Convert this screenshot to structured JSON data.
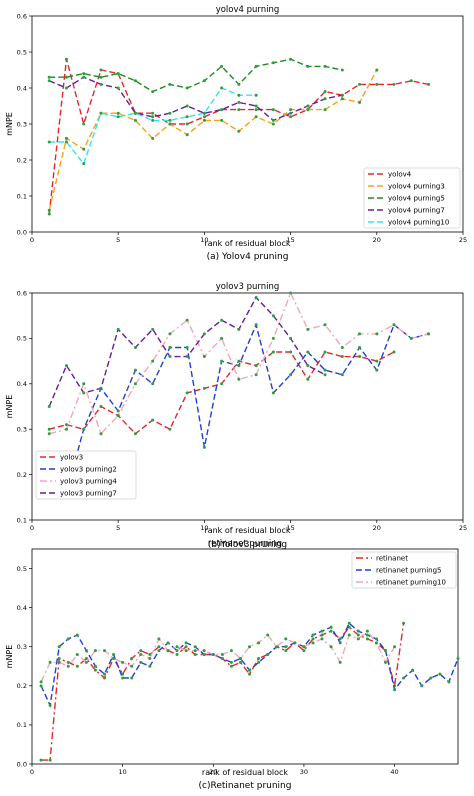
{
  "chart_data": [
    {
      "type": "line",
      "title": "yolov4 purning",
      "xlabel": "rank of residual block",
      "ylabel": "mNPE",
      "caption": "(a)  Yolov4 pruning",
      "xlim": [
        0,
        25
      ],
      "ylim": [
        0,
        0.6
      ],
      "xticks": [
        0,
        5,
        10,
        15,
        20,
        25
      ],
      "yticks": [
        0.0,
        0.1,
        0.2,
        0.3,
        0.4,
        0.5,
        0.6
      ],
      "legend_position": "lower-right",
      "series": [
        {
          "name": "yolov4",
          "color": "#e8262a",
          "dash": "dashed",
          "x": [
            1,
            2,
            3,
            4,
            5,
            6,
            7,
            8,
            9,
            10,
            11,
            12,
            13,
            14,
            15,
            16,
            17,
            18,
            19,
            20,
            21,
            22,
            23
          ],
          "y": [
            0.05,
            0.48,
            0.3,
            0.45,
            0.44,
            0.33,
            0.33,
            0.3,
            0.3,
            0.32,
            0.34,
            0.34,
            0.34,
            0.34,
            0.32,
            0.34,
            0.39,
            0.38,
            0.41,
            0.41,
            0.41,
            0.42,
            0.41
          ]
        },
        {
          "name": "yolov4 purning3",
          "color": "#f5a316",
          "dash": "dashed",
          "x": [
            1,
            2,
            3,
            4,
            5,
            6,
            7,
            8,
            9,
            10,
            11,
            12,
            13,
            14,
            15,
            16,
            17,
            18,
            19,
            20
          ],
          "y": [
            0.06,
            0.26,
            0.23,
            0.33,
            0.33,
            0.31,
            0.26,
            0.3,
            0.27,
            0.31,
            0.31,
            0.28,
            0.32,
            0.3,
            0.34,
            0.34,
            0.34,
            0.37,
            0.36,
            0.45
          ]
        },
        {
          "name": "yolov4 purning5",
          "color": "#1f8a1f",
          "dash": "dashed",
          "x": [
            1,
            2,
            3,
            4,
            5,
            6,
            7,
            8,
            9,
            10,
            11,
            12,
            13,
            14,
            15,
            16,
            17,
            18
          ],
          "y": [
            0.43,
            0.43,
            0.44,
            0.43,
            0.44,
            0.42,
            0.39,
            0.41,
            0.4,
            0.42,
            0.46,
            0.41,
            0.46,
            0.47,
            0.48,
            0.46,
            0.46,
            0.45
          ]
        },
        {
          "name": "yolov4 purning7",
          "color": "#6a1b9a",
          "dash": "dashed",
          "x": [
            1,
            2,
            3,
            4,
            5,
            6,
            7,
            8,
            9,
            10,
            11,
            12,
            13,
            14,
            15,
            16,
            17,
            18
          ],
          "y": [
            0.42,
            0.4,
            0.43,
            0.41,
            0.4,
            0.33,
            0.32,
            0.33,
            0.35,
            0.33,
            0.34,
            0.36,
            0.35,
            0.31,
            0.33,
            0.35,
            0.37,
            0.38
          ]
        },
        {
          "name": "yolov4 purning10",
          "color": "#2ee6f0",
          "dash": "dashed",
          "x": [
            1,
            2,
            3,
            4,
            5,
            6,
            7,
            8,
            9,
            10,
            11,
            12,
            13
          ],
          "y": [
            0.25,
            0.25,
            0.19,
            0.33,
            0.32,
            0.33,
            0.31,
            0.31,
            0.32,
            0.33,
            0.4,
            0.38,
            0.38
          ]
        }
      ]
    },
    {
      "type": "line",
      "title": "yolov3 purning",
      "xlabel": "rank of residual block",
      "ylabel": "mNPE",
      "caption": "(b)Yolov3 pruning",
      "xlim": [
        0,
        25
      ],
      "ylim": [
        0.1,
        0.6
      ],
      "xticks": [
        0,
        5,
        10,
        15,
        20,
        25
      ],
      "yticks": [
        0.1,
        0.2,
        0.3,
        0.4,
        0.5,
        0.6
      ],
      "legend_position": "lower-left",
      "series": [
        {
          "name": "yolov3",
          "color": "#e8262a",
          "dash": "dashed",
          "x": [
            1,
            2,
            3,
            4,
            5,
            6,
            7,
            8,
            9,
            10,
            11,
            12,
            13,
            14,
            15,
            16,
            17,
            18,
            19,
            20,
            21
          ],
          "y": [
            0.3,
            0.31,
            0.3,
            0.35,
            0.33,
            0.29,
            0.32,
            0.3,
            0.38,
            0.39,
            0.4,
            0.45,
            0.44,
            0.47,
            0.47,
            0.41,
            0.47,
            0.46,
            0.46,
            0.45,
            0.47
          ]
        },
        {
          "name": "yolov3 purning2",
          "color": "#1f3fd6",
          "dash": "dashed",
          "x": [
            1,
            2,
            3,
            4,
            5,
            6,
            7,
            8,
            9,
            10,
            11,
            12,
            13,
            14,
            15,
            16,
            17,
            18,
            19,
            20,
            21,
            22,
            23
          ],
          "y": [
            0.18,
            0.16,
            0.3,
            0.39,
            0.34,
            0.43,
            0.4,
            0.48,
            0.48,
            0.26,
            0.45,
            0.44,
            0.53,
            0.38,
            0.42,
            0.47,
            0.43,
            0.42,
            0.48,
            0.43,
            0.53,
            0.5,
            0.51
          ]
        },
        {
          "name": "yolov3 purning4",
          "color": "#f4a6b8",
          "dash": "dashdot",
          "x": [
            1,
            2,
            3,
            4,
            5,
            6,
            7,
            8,
            9,
            10,
            11,
            12,
            13,
            14,
            15,
            16,
            17,
            18,
            19,
            20,
            21,
            22,
            23
          ],
          "y": [
            0.29,
            0.3,
            0.4,
            0.29,
            0.33,
            0.4,
            0.45,
            0.51,
            0.54,
            0.46,
            0.5,
            0.41,
            0.42,
            0.5,
            0.6,
            0.52,
            0.53,
            0.48,
            0.51,
            0.51,
            0.53,
            0.5,
            0.51
          ]
        },
        {
          "name": "yolov3 purning7",
          "color": "#6a1b9a",
          "dash": "dashed",
          "x": [
            1,
            2,
            3,
            4,
            5,
            6,
            7,
            8,
            9,
            10,
            11,
            12,
            13,
            14,
            15,
            16,
            17
          ],
          "y": [
            0.35,
            0.44,
            0.38,
            0.39,
            0.52,
            0.48,
            0.52,
            0.46,
            0.46,
            0.51,
            0.54,
            0.52,
            0.59,
            0.55,
            0.5,
            0.44,
            0.42
          ]
        }
      ]
    },
    {
      "type": "line",
      "title": "retinanet purning",
      "xlabel": "rank of residual block",
      "ylabel": "mNPE",
      "caption": "(c)Retinanet pruning",
      "xlim": [
        0,
        47
      ],
      "ylim": [
        0,
        0.55
      ],
      "xticks": [
        0,
        10,
        20,
        30,
        40
      ],
      "yticks": [
        0.0,
        0.1,
        0.2,
        0.3,
        0.4,
        0.5
      ],
      "legend_position": "upper-right",
      "series": [
        {
          "name": "retinanet",
          "color": "#e8262a",
          "dash": "dashdot",
          "x": [
            1,
            2,
            3,
            4,
            5,
            6,
            7,
            8,
            9,
            10,
            11,
            12,
            13,
            14,
            15,
            16,
            17,
            18,
            19,
            20,
            21,
            22,
            23,
            24,
            25,
            26,
            27,
            28,
            29,
            30,
            31,
            32,
            33,
            34,
            35,
            36,
            37,
            38,
            39,
            40,
            41
          ],
          "y": [
            0.01,
            0.01,
            0.27,
            0.26,
            0.25,
            0.27,
            0.24,
            0.22,
            0.27,
            0.23,
            0.27,
            0.29,
            0.28,
            0.3,
            0.29,
            0.28,
            0.3,
            0.28,
            0.28,
            0.28,
            0.27,
            0.25,
            0.26,
            0.23,
            0.27,
            0.28,
            0.3,
            0.29,
            0.31,
            0.29,
            0.32,
            0.33,
            0.34,
            0.32,
            0.35,
            0.33,
            0.32,
            0.31,
            0.29,
            0.2,
            0.36
          ]
        },
        {
          "name": "retinanet purning5",
          "color": "#1f3fd6",
          "dash": "dashed",
          "x": [
            1,
            2,
            3,
            4,
            5,
            6,
            7,
            8,
            9,
            10,
            11,
            12,
            13,
            14,
            15,
            16,
            17,
            18,
            19,
            20,
            21,
            22,
            23,
            24,
            25,
            26,
            27,
            28,
            29,
            30,
            31,
            32,
            33,
            34,
            35,
            36,
            37,
            38,
            39,
            40,
            41,
            42,
            43,
            44,
            45,
            46,
            47
          ],
          "y": [
            0.2,
            0.15,
            0.3,
            0.32,
            0.33,
            0.29,
            0.25,
            0.23,
            0.28,
            0.22,
            0.22,
            0.26,
            0.25,
            0.29,
            0.31,
            0.29,
            0.31,
            0.3,
            0.28,
            0.28,
            0.27,
            0.26,
            0.27,
            0.24,
            0.26,
            0.28,
            0.3,
            0.3,
            0.31,
            0.3,
            0.33,
            0.34,
            0.35,
            0.31,
            0.36,
            0.34,
            0.33,
            0.32,
            0.29,
            0.19,
            0.22,
            0.24,
            0.2,
            0.22,
            0.23,
            0.21,
            0.27
          ]
        },
        {
          "name": "retinanet purning10",
          "color": "#f4a6b8",
          "dash": "dashdot",
          "x": [
            1,
            2,
            3,
            4,
            5,
            6,
            7,
            8,
            9,
            10,
            11,
            12,
            13,
            14,
            15,
            16,
            17,
            18,
            19,
            20,
            21,
            22,
            23,
            24,
            25,
            26,
            27,
            28,
            29,
            30,
            31,
            32,
            33,
            34,
            35,
            36,
            37,
            38,
            39,
            40
          ],
          "y": [
            0.21,
            0.26,
            0.26,
            0.25,
            0.28,
            0.26,
            0.29,
            0.29,
            0.27,
            0.26,
            0.25,
            0.28,
            0.27,
            0.32,
            0.29,
            0.3,
            0.29,
            0.29,
            0.29,
            0.28,
            0.28,
            0.29,
            0.27,
            0.3,
            0.31,
            0.33,
            0.3,
            0.32,
            0.31,
            0.3,
            0.31,
            0.32,
            0.3,
            0.26,
            0.33,
            0.32,
            0.34,
            0.31,
            0.26,
            0.3
          ]
        }
      ]
    }
  ]
}
